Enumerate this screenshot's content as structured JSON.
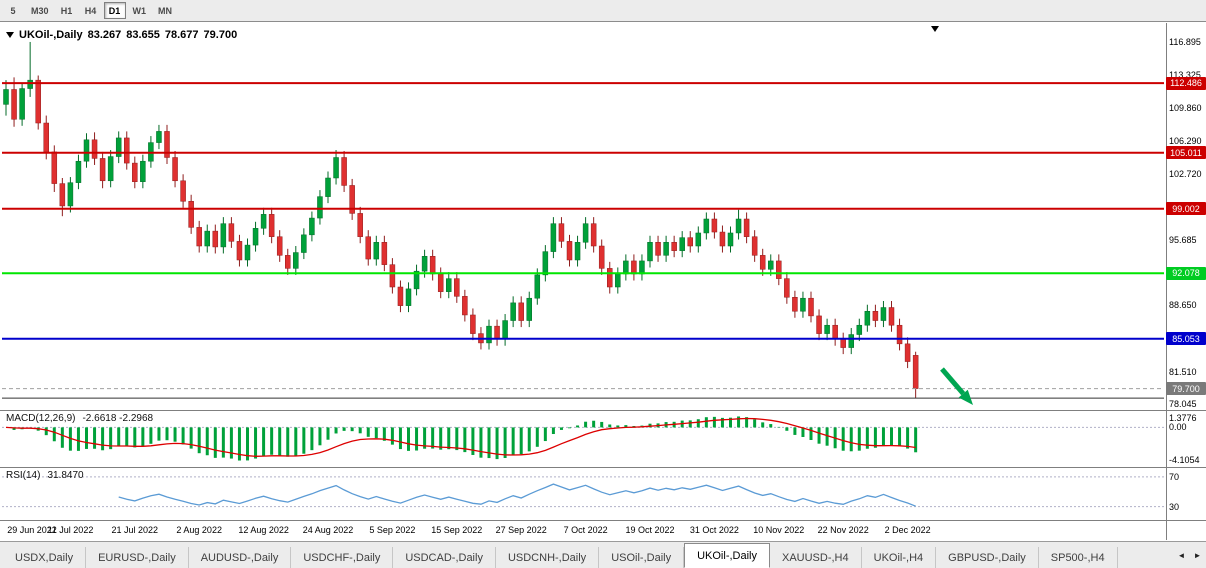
{
  "colors": {
    "bull": "#00a13a",
    "bull_border": "#046b28",
    "bear": "#df3030",
    "bear_border": "#8f1d1d",
    "macd_bar": "#00a13a",
    "macd_signal": "#dd0000",
    "rsi_line": "#5b9bd5",
    "level_dashed": "#b0b0c8",
    "current_price_line": "#a0a0a0",
    "arrow": "#00a651"
  },
  "toolbar": {
    "timeframes": [
      {
        "label": "5",
        "active": false
      },
      {
        "label": "M30",
        "active": false
      },
      {
        "label": "H1",
        "active": false
      },
      {
        "label": "H4",
        "active": false
      },
      {
        "label": "D1",
        "active": true
      },
      {
        "label": "W1",
        "active": false
      },
      {
        "label": "MN",
        "active": false
      }
    ]
  },
  "chart": {
    "title": {
      "symbol": "UKOil-,Daily",
      "open": "83.267",
      "high": "83.655",
      "low": "78.677",
      "close": "79.700"
    },
    "price_axis_labels": [
      {
        "text": "116.895",
        "price": 116.895
      },
      {
        "text": "113.325",
        "price": 113.325
      },
      {
        "text": "109.860",
        "price": 109.86
      },
      {
        "text": "106.290",
        "price": 106.29
      },
      {
        "text": "102.720",
        "price": 102.72
      },
      {
        "text": "95.685",
        "price": 95.685
      },
      {
        "text": "88.650",
        "price": 88.65
      },
      {
        "text": "81.510",
        "price": 81.51
      },
      {
        "text": "78.045",
        "price": 78.045
      }
    ],
    "price_badges": [
      {
        "text": "112.486",
        "price": 112.486,
        "bg": "#cc0000",
        "fg": "#ffffff"
      },
      {
        "text": "105.011",
        "price": 105.011,
        "bg": "#cc0000",
        "fg": "#ffffff"
      },
      {
        "text": "99.002",
        "price": 99.002,
        "bg": "#cc0000",
        "fg": "#ffffff"
      },
      {
        "text": "92.078",
        "price": 92.078,
        "bg": "#00cc22",
        "fg": "#ffffff"
      },
      {
        "text": "85.053",
        "price": 85.053,
        "bg": "#0000cc",
        "fg": "#ffffff"
      },
      {
        "text": "79.700",
        "price": 79.7,
        "bg": "#7a7a7a",
        "fg": "#ffffff"
      }
    ],
    "hlines": [
      {
        "price": 112.486,
        "color": "#cc0000",
        "width": 2
      },
      {
        "price": 105.011,
        "color": "#cc0000",
        "width": 2
      },
      {
        "price": 99.002,
        "color": "#cc0000",
        "width": 2
      },
      {
        "price": 92.078,
        "color": "#00e600",
        "width": 2
      },
      {
        "price": 85.053,
        "color": "#0000cc",
        "width": 2
      },
      {
        "price": 78.68,
        "color": "#333333",
        "width": 1
      }
    ],
    "current_price": 79.7,
    "indicators": {
      "macd": {
        "label": "MACD(12,26,9)",
        "values": "-2.6618 -2.2968",
        "axis_top": "1.3776",
        "axis_zero": "0.00",
        "axis_bottom": "-4.1054",
        "params": [
          12,
          26,
          9
        ]
      },
      "rsi": {
        "label": "RSI(14)",
        "value": "31.8470",
        "levels": [
          "70",
          "30"
        ],
        "period": 14
      }
    }
  },
  "chart_data": {
    "type": "candlestick-ohlc",
    "symbol": "UKOil",
    "timeframe": "Daily",
    "ticks_every_n_candles": 8,
    "x_tick_labels": [
      "29 Jun 2022",
      "11 Jul 2022",
      "21 Jul 2022",
      "2 Aug 2022",
      "12 Aug 2022",
      "24 Aug 2022",
      "5 Sep 2022",
      "15 Sep 2022",
      "27 Sep 2022",
      "7 Oct 2022",
      "19 Oct 2022",
      "31 Oct 2022",
      "10 Nov 2022",
      "22 Nov 2022",
      "2 Dec 2022"
    ],
    "candles_ohlc": [
      [
        110.2,
        112.8,
        109.0,
        111.8
      ],
      [
        111.8,
        113.1,
        107.8,
        108.6
      ],
      [
        108.6,
        112.4,
        107.9,
        111.9
      ],
      [
        111.9,
        116.9,
        111.0,
        112.8
      ],
      [
        112.8,
        113.3,
        107.5,
        108.2
      ],
      [
        108.2,
        109.0,
        104.3,
        105.1
      ],
      [
        105.1,
        105.8,
        100.8,
        101.7
      ],
      [
        101.7,
        102.3,
        98.2,
        99.3
      ],
      [
        99.3,
        102.4,
        98.6,
        101.8
      ],
      [
        101.8,
        104.8,
        101.1,
        104.1
      ],
      [
        104.1,
        107.1,
        103.4,
        106.4
      ],
      [
        106.4,
        107.2,
        103.7,
        104.4
      ],
      [
        104.4,
        105.1,
        101.2,
        102.0
      ],
      [
        102.0,
        105.3,
        101.3,
        104.6
      ],
      [
        104.6,
        107.3,
        103.9,
        106.6
      ],
      [
        106.6,
        107.3,
        103.2,
        103.9
      ],
      [
        103.9,
        104.6,
        101.2,
        101.9
      ],
      [
        101.9,
        104.8,
        101.2,
        104.1
      ],
      [
        104.1,
        106.8,
        103.4,
        106.1
      ],
      [
        106.1,
        108.0,
        105.4,
        107.3
      ],
      [
        107.3,
        108.0,
        103.8,
        104.5
      ],
      [
        104.5,
        105.2,
        101.3,
        102.0
      ],
      [
        102.0,
        102.7,
        99.1,
        99.8
      ],
      [
        99.8,
        100.5,
        96.3,
        97.0
      ],
      [
        97.0,
        97.7,
        94.3,
        95.0
      ],
      [
        95.0,
        97.3,
        94.3,
        96.6
      ],
      [
        96.6,
        97.3,
        94.2,
        94.9
      ],
      [
        94.9,
        98.1,
        94.2,
        97.4
      ],
      [
        97.4,
        98.1,
        94.8,
        95.5
      ],
      [
        95.5,
        96.2,
        92.8,
        93.5
      ],
      [
        93.5,
        95.8,
        92.8,
        95.1
      ],
      [
        95.1,
        97.6,
        94.4,
        96.9
      ],
      [
        96.9,
        99.1,
        96.2,
        98.4
      ],
      [
        98.4,
        99.1,
        95.3,
        96.0
      ],
      [
        96.0,
        96.7,
        93.3,
        94.0
      ],
      [
        94.0,
        94.7,
        91.9,
        92.6
      ],
      [
        92.6,
        95.0,
        91.9,
        94.3
      ],
      [
        94.3,
        96.9,
        93.6,
        96.2
      ],
      [
        96.2,
        98.7,
        95.5,
        98.0
      ],
      [
        98.0,
        101.0,
        97.3,
        100.3
      ],
      [
        100.3,
        103.0,
        99.6,
        102.3
      ],
      [
        102.3,
        105.3,
        101.6,
        104.5
      ],
      [
        104.5,
        105.2,
        100.8,
        101.5
      ],
      [
        101.5,
        102.2,
        97.8,
        98.5
      ],
      [
        98.5,
        99.2,
        95.3,
        96.0
      ],
      [
        96.0,
        96.7,
        92.9,
        93.6
      ],
      [
        93.6,
        96.1,
        92.9,
        95.4
      ],
      [
        95.4,
        96.1,
        92.3,
        93.0
      ],
      [
        93.0,
        93.7,
        89.9,
        90.6
      ],
      [
        90.6,
        91.3,
        87.9,
        88.6
      ],
      [
        88.6,
        91.1,
        87.9,
        90.4
      ],
      [
        90.4,
        93.0,
        89.7,
        92.3
      ],
      [
        92.3,
        94.6,
        91.6,
        93.9
      ],
      [
        93.9,
        94.6,
        91.3,
        92.0
      ],
      [
        92.0,
        92.7,
        89.4,
        90.1
      ],
      [
        90.1,
        92.2,
        89.4,
        91.5
      ],
      [
        91.5,
        92.2,
        88.9,
        89.6
      ],
      [
        89.6,
        90.3,
        86.9,
        87.6
      ],
      [
        87.6,
        88.3,
        84.9,
        85.6
      ],
      [
        85.6,
        86.3,
        83.9,
        84.6
      ],
      [
        84.6,
        87.1,
        83.9,
        86.4
      ],
      [
        86.4,
        87.1,
        84.3,
        85.0
      ],
      [
        85.0,
        87.7,
        84.3,
        87.0
      ],
      [
        87.0,
        89.6,
        86.3,
        88.9
      ],
      [
        88.9,
        89.6,
        86.3,
        87.0
      ],
      [
        87.0,
        90.1,
        86.3,
        89.4
      ],
      [
        89.4,
        92.6,
        88.7,
        91.9
      ],
      [
        91.9,
        95.1,
        91.2,
        94.4
      ],
      [
        94.4,
        98.1,
        93.7,
        97.4
      ],
      [
        97.4,
        98.1,
        94.8,
        95.5
      ],
      [
        95.5,
        96.2,
        92.8,
        93.5
      ],
      [
        93.5,
        96.1,
        92.8,
        95.4
      ],
      [
        95.4,
        98.1,
        94.7,
        97.4
      ],
      [
        97.4,
        98.1,
        94.3,
        95.0
      ],
      [
        95.0,
        95.7,
        91.9,
        92.6
      ],
      [
        92.6,
        93.3,
        89.9,
        90.6
      ],
      [
        90.6,
        92.7,
        89.9,
        92.0
      ],
      [
        92.0,
        94.1,
        91.3,
        93.4
      ],
      [
        93.4,
        94.1,
        91.3,
        92.0
      ],
      [
        92.0,
        94.1,
        91.3,
        93.4
      ],
      [
        93.4,
        96.1,
        92.7,
        95.4
      ],
      [
        95.4,
        96.1,
        93.3,
        94.0
      ],
      [
        94.0,
        96.1,
        93.3,
        95.4
      ],
      [
        95.4,
        96.1,
        93.8,
        94.5
      ],
      [
        94.5,
        96.6,
        93.8,
        95.9
      ],
      [
        95.9,
        96.6,
        94.3,
        95.0
      ],
      [
        95.0,
        97.1,
        94.3,
        96.4
      ],
      [
        96.4,
        98.6,
        95.7,
        97.9
      ],
      [
        97.9,
        98.6,
        95.8,
        96.5
      ],
      [
        96.5,
        97.2,
        94.3,
        95.0
      ],
      [
        95.0,
        97.1,
        94.3,
        96.4
      ],
      [
        96.4,
        98.9,
        95.7,
        97.9
      ],
      [
        97.9,
        98.6,
        95.3,
        96.0
      ],
      [
        96.0,
        96.7,
        93.3,
        94.0
      ],
      [
        94.0,
        94.7,
        91.8,
        92.5
      ],
      [
        92.5,
        94.1,
        91.8,
        93.4
      ],
      [
        93.4,
        94.1,
        90.8,
        91.5
      ],
      [
        91.5,
        92.2,
        88.8,
        89.5
      ],
      [
        89.5,
        90.2,
        87.3,
        88.0
      ],
      [
        88.0,
        90.1,
        87.3,
        89.4
      ],
      [
        89.4,
        90.1,
        86.8,
        87.5
      ],
      [
        87.5,
        88.2,
        84.9,
        85.6
      ],
      [
        85.6,
        87.2,
        84.9,
        86.5
      ],
      [
        86.5,
        87.2,
        84.3,
        85.0
      ],
      [
        85.0,
        85.7,
        83.4,
        84.1
      ],
      [
        84.1,
        86.2,
        83.4,
        85.5
      ],
      [
        85.5,
        87.2,
        84.8,
        86.5
      ],
      [
        86.5,
        88.7,
        85.8,
        88.0
      ],
      [
        88.0,
        88.7,
        86.3,
        87.0
      ],
      [
        87.0,
        89.1,
        86.3,
        88.4
      ],
      [
        88.4,
        89.1,
        85.8,
        86.5
      ],
      [
        86.5,
        87.2,
        83.8,
        84.5
      ],
      [
        84.5,
        85.2,
        81.9,
        82.6
      ],
      [
        83.267,
        83.655,
        78.677,
        79.7
      ]
    ]
  },
  "tabbar": {
    "tabs": [
      {
        "label": "USDX,Daily",
        "active": false
      },
      {
        "label": "EURUSD-,Daily",
        "active": false
      },
      {
        "label": "AUDUSD-,Daily",
        "active": false
      },
      {
        "label": "USDCHF-,Daily",
        "active": false
      },
      {
        "label": "USDCAD-,Daily",
        "active": false
      },
      {
        "label": "USDCNH-,Daily",
        "active": false
      },
      {
        "label": "USOil-,Daily",
        "active": false
      },
      {
        "label": "UKOil-,Daily",
        "active": true
      },
      {
        "label": "XAUUSD-,H4",
        "active": false
      },
      {
        "label": "UKOil-,H4",
        "active": false
      },
      {
        "label": "GBPUSD-,Daily",
        "active": false
      },
      {
        "label": "SP500-,H4",
        "active": false
      }
    ],
    "scroll_left": "◄",
    "scroll_right": "►"
  }
}
